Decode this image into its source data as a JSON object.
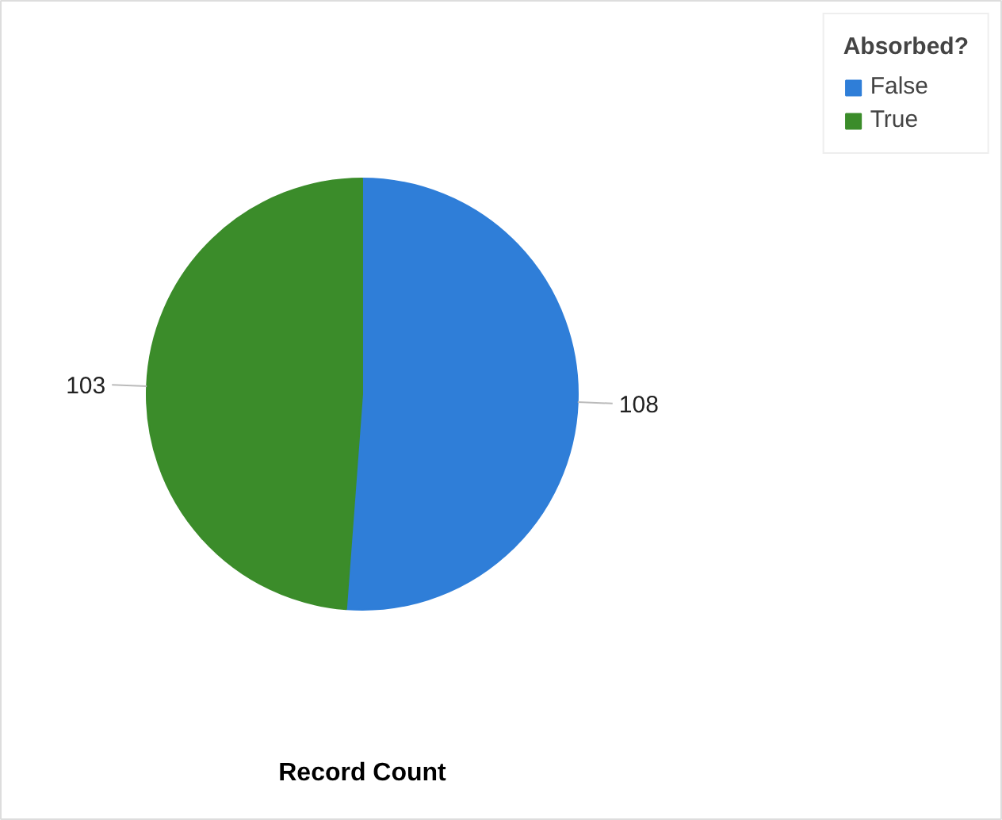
{
  "chart_data": {
    "type": "pie",
    "xlabel": "Record Count",
    "legend_title": "Absorbed?",
    "legend": "top right",
    "data_labels": true,
    "categories": [
      "False",
      "True"
    ],
    "values": [
      108,
      103
    ],
    "colors": [
      "#2f7ed8",
      "#3b8c2a"
    ]
  }
}
